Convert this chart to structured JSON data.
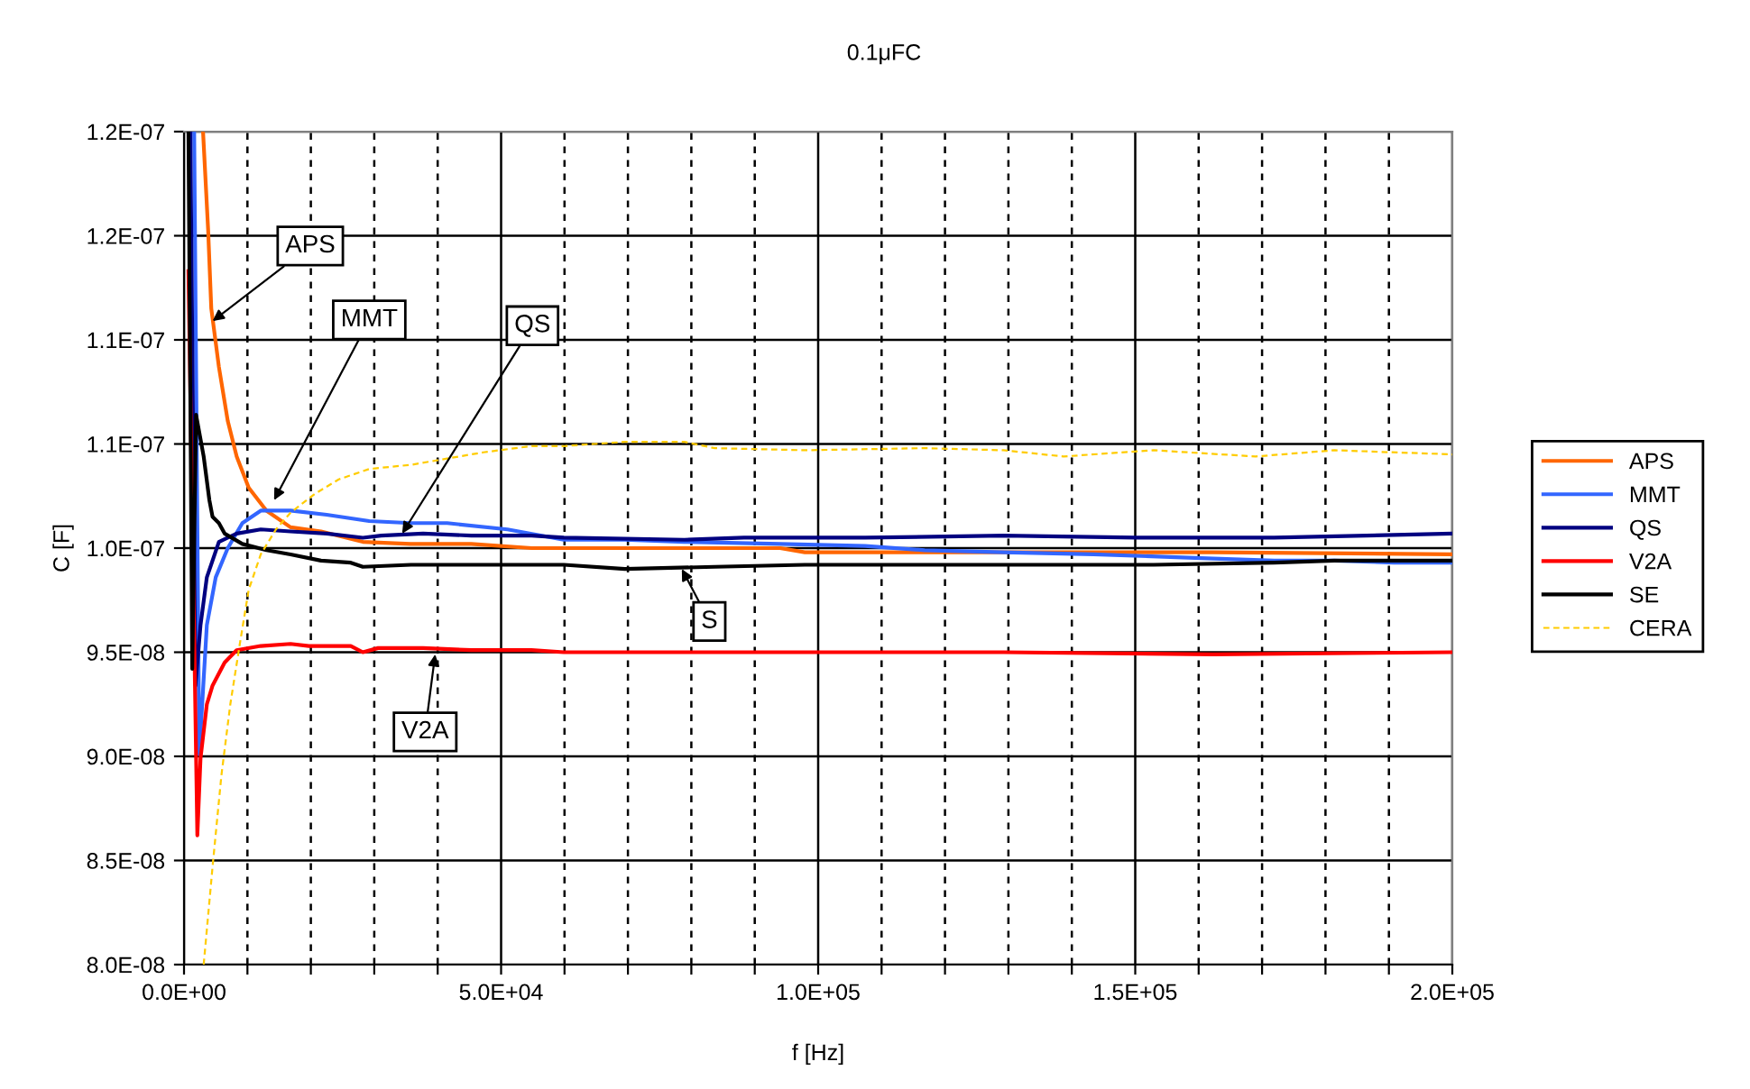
{
  "chart_data": {
    "type": "line",
    "title": "0.1μFC",
    "xlabel": "f [Hz]",
    "ylabel": "C [F]",
    "xlim": [
      0,
      200000
    ],
    "ylim": [
      8e-08,
      1.2e-07
    ],
    "xticks": [
      {
        "value": 0,
        "label": "0.0E+00"
      },
      {
        "value": 10000,
        "label": null
      },
      {
        "value": 20000,
        "label": null
      },
      {
        "value": 30000,
        "label": null
      },
      {
        "value": 40000,
        "label": null
      },
      {
        "value": 50000,
        "label": "5.0E+04"
      },
      {
        "value": 60000,
        "label": null
      },
      {
        "value": 70000,
        "label": null
      },
      {
        "value": 80000,
        "label": null
      },
      {
        "value": 90000,
        "label": null
      },
      {
        "value": 100000,
        "label": "1.0E+05"
      },
      {
        "value": 110000,
        "label": null
      },
      {
        "value": 120000,
        "label": null
      },
      {
        "value": 130000,
        "label": null
      },
      {
        "value": 140000,
        "label": null
      },
      {
        "value": 150000,
        "label": "1.5E+05"
      },
      {
        "value": 160000,
        "label": null
      },
      {
        "value": 170000,
        "label": null
      },
      {
        "value": 180000,
        "label": null
      },
      {
        "value": 190000,
        "label": null
      },
      {
        "value": 200000,
        "label": "2.0E+05"
      }
    ],
    "yticks": [
      {
        "value": 8e-08,
        "label": "8.0E-08"
      },
      {
        "value": 8.5e-08,
        "label": "8.5E-08"
      },
      {
        "value": 9e-08,
        "label": "9.0E-08"
      },
      {
        "value": 9.5e-08,
        "label": "9.5E-08"
      },
      {
        "value": 1e-07,
        "label": "1.0E-07"
      },
      {
        "value": 1.05e-07,
        "label": "1.1E-07"
      },
      {
        "value": 1.1e-07,
        "label": "1.1E-07"
      },
      {
        "value": 1.15e-07,
        "label": "1.2E-07"
      },
      {
        "value": 1.2e-07,
        "label": "1.2E-07"
      }
    ],
    "grid": true,
    "legend": "right",
    "series": [
      {
        "name": "APS",
        "color": "#ff6600",
        "x": [
          3000,
          3800,
          4300,
          5500,
          6900,
          8300,
          10200,
          13000,
          16800,
          21600,
          28200,
          35700,
          45300,
          54800,
          57600,
          94000,
          97900,
          129200,
          162300,
          200000
        ],
        "values": [
          1.2e-07,
          1.153e-07,
          1.115e-07,
          1.087e-07,
          1.061e-07,
          1.044e-07,
          1.029e-07,
          1.018e-07,
          1.01e-07,
          1.008e-07,
          1.003e-07,
          1.002e-07,
          1.002e-07,
          1e-07,
          1e-07,
          1e-07,
          9.98e-08,
          9.98e-08,
          9.98e-08,
          9.97e-08
        ]
      },
      {
        "name": "MMT",
        "color": "#3366ff",
        "x": [
          1600,
          2400,
          3600,
          5000,
          6900,
          9200,
          12100,
          16800,
          22500,
          29200,
          35800,
          41500,
          51000,
          59900,
          69500,
          78900,
          94000,
          107400,
          116800,
          129200,
          143400,
          162300,
          171900,
          181400,
          190800,
          200000
        ],
        "values": [
          1.2e-07,
          9.01e-08,
          9.63e-08,
          9.86e-08,
          1e-07,
          1.012e-07,
          1.018e-07,
          1.018e-07,
          1.016e-07,
          1.013e-07,
          1.012e-07,
          1.012e-07,
          1.009e-07,
          1.004e-07,
          1.004e-07,
          1.003e-07,
          1.002e-07,
          1.001e-07,
          9.99e-08,
          9.98e-08,
          9.97e-08,
          9.95e-08,
          9.94e-08,
          9.94e-08,
          9.93e-08,
          9.93e-08
        ]
      },
      {
        "name": "QS",
        "color": "#000080",
        "x": [
          1000,
          1800,
          2600,
          3600,
          5500,
          8300,
          12100,
          16800,
          22500,
          28200,
          31100,
          37700,
          45300,
          54800,
          59900,
          78900,
          88300,
          107400,
          129200,
          150100,
          171900,
          200000
        ],
        "values": [
          1.2e-07,
          9.34e-08,
          9.63e-08,
          9.86e-08,
          1.003e-07,
          1.007e-07,
          1.009e-07,
          1.008e-07,
          1.007e-07,
          1.005e-07,
          1.006e-07,
          1.007e-07,
          1.006e-07,
          1.006e-07,
          1.005e-07,
          1.004e-07,
          1.005e-07,
          1.005e-07,
          1.006e-07,
          1.005e-07,
          1.005e-07,
          1.007e-07
        ]
      },
      {
        "name": "V2A",
        "color": "#ff0000",
        "x": [
          700,
          2100,
          2600,
          3600,
          4500,
          6400,
          8300,
          12100,
          16800,
          19700,
          26300,
          28200,
          30600,
          37700,
          45300,
          54800,
          59900,
          97900,
          129200,
          162300,
          200000
        ],
        "values": [
          1.133e-07,
          8.62e-08,
          8.99e-08,
          9.25e-08,
          9.34e-08,
          9.45e-08,
          9.51e-08,
          9.53e-08,
          9.54e-08,
          9.53e-08,
          9.53e-08,
          9.5e-08,
          9.52e-08,
          9.52e-08,
          9.51e-08,
          9.51e-08,
          9.5e-08,
          9.5e-08,
          9.5e-08,
          9.49e-08,
          9.5e-08
        ]
      },
      {
        "name": "SE",
        "color": "#000000",
        "x": [
          700,
          1300,
          1900,
          3100,
          4000,
          4500,
          5500,
          6400,
          9200,
          13000,
          16800,
          21600,
          26300,
          28200,
          35800,
          45300,
          54800,
          59900,
          69500,
          83700,
          97900,
          129200,
          152900,
          171900,
          181400,
          200000
        ],
        "values": [
          1.2e-07,
          9.42e-08,
          1.064e-07,
          1.044e-07,
          1.023e-07,
          1.015e-07,
          1.012e-07,
          1.007e-07,
          1.002e-07,
          9.99e-08,
          9.97e-08,
          9.94e-08,
          9.93e-08,
          9.91e-08,
          9.92e-08,
          9.92e-08,
          9.92e-08,
          9.92e-08,
          9.9e-08,
          9.91e-08,
          9.92e-08,
          9.92e-08,
          9.92e-08,
          9.93e-08,
          9.94e-08,
          9.94e-08
        ]
      },
      {
        "name": "CERA",
        "color": "#ffcc00",
        "line_style": "dashed",
        "x": [
          3100,
          4500,
          5900,
          7300,
          8800,
          10200,
          12100,
          14500,
          16800,
          20600,
          24400,
          29200,
          35800,
          41500,
          47200,
          54800,
          59900,
          69500,
          78900,
          83700,
          97900,
          116800,
          129200,
          138700,
          152900,
          169000,
          181400,
          200000
        ],
        "values": [
          8e-08,
          8.47e-08,
          8.91e-08,
          9.25e-08,
          9.54e-08,
          9.8e-08,
          9.97e-08,
          1.009e-07,
          1.017e-07,
          1.026e-07,
          1.033e-07,
          1.038e-07,
          1.04e-07,
          1.043e-07,
          1.046e-07,
          1.049e-07,
          1.049e-07,
          1.051e-07,
          1.051e-07,
          1.048e-07,
          1.047e-07,
          1.048e-07,
          1.047e-07,
          1.044e-07,
          1.047e-07,
          1.044e-07,
          1.047e-07,
          1.045e-07
        ]
      }
    ],
    "annotations": [
      {
        "text": "APS",
        "x": 4500,
        "y": 1.109e-07
      },
      {
        "text": "MMT",
        "x": 14200,
        "y": 1.023e-07
      },
      {
        "text": "QS",
        "x": 34400,
        "y": 1.007e-07
      },
      {
        "text": "S",
        "x": 78500,
        "y": 9.9e-08
      },
      {
        "text": "V2A",
        "x": 39600,
        "y": 9.49e-08
      }
    ]
  }
}
